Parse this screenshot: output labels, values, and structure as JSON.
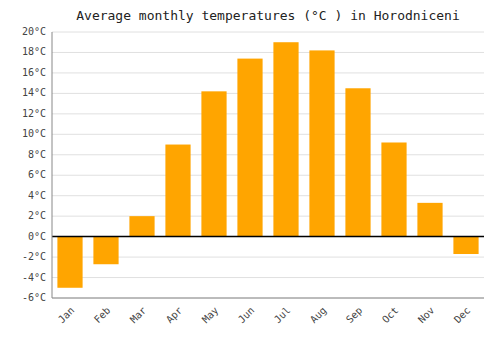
{
  "chart_data": {
    "type": "bar",
    "title": "Average monthly temperatures (°C ) in Horodniceni",
    "categories": [
      "Jan",
      "Feb",
      "Mar",
      "Apr",
      "May",
      "Jun",
      "Jul",
      "Aug",
      "Sep",
      "Oct",
      "Nov",
      "Dec"
    ],
    "values": [
      -5.0,
      -2.7,
      2.0,
      9.0,
      14.2,
      17.4,
      19.0,
      18.2,
      14.5,
      9.2,
      3.3,
      -1.7
    ],
    "color": "#FFA500",
    "ylim": [
      -6,
      20
    ],
    "yticks": [
      {
        "value": -6,
        "label": "-6°C"
      },
      {
        "value": -4,
        "label": "-4°C"
      },
      {
        "value": -2,
        "label": "-2°C"
      },
      {
        "value": 0,
        "label": "0°C"
      },
      {
        "value": 2,
        "label": "2°C"
      },
      {
        "value": 4,
        "label": "4°C"
      },
      {
        "value": 6,
        "label": "6°C"
      },
      {
        "value": 8,
        "label": "8°C"
      },
      {
        "value": 10,
        "label": "10°C"
      },
      {
        "value": 12,
        "label": "12°C"
      },
      {
        "value": 14,
        "label": "14°C"
      },
      {
        "value": 16,
        "label": "16°C"
      },
      {
        "value": 18,
        "label": "18°C"
      },
      {
        "value": 20,
        "label": "20°C"
      }
    ],
    "grid": true
  }
}
